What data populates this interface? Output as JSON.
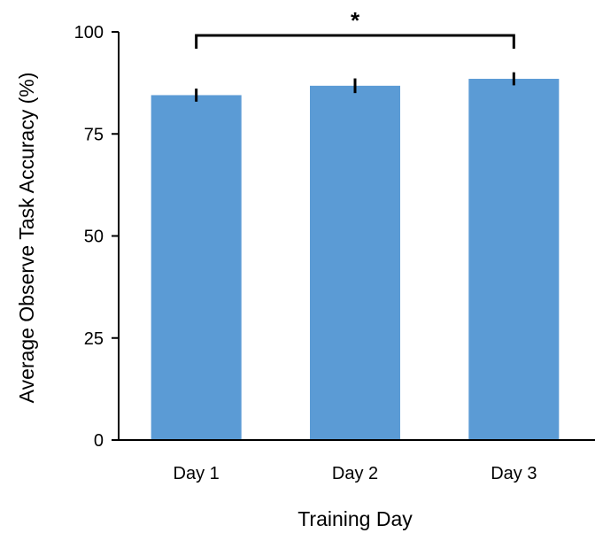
{
  "chart_data": {
    "type": "bar",
    "categories": [
      "Day 1",
      "Day 2",
      "Day 3"
    ],
    "values": [
      84.5,
      86.8,
      88.5
    ],
    "errors": [
      1.6,
      1.8,
      1.6
    ],
    "xlabel": "Training Day",
    "ylabel": "Average Observe Task Accuracy (%)",
    "ylim": [
      0,
      100
    ],
    "yticks": [
      "0",
      "25",
      "50",
      "75",
      "100"
    ],
    "grid": false,
    "bar_color": "#5b9bd5",
    "significance": {
      "from": "Day 1",
      "to": "Day 3",
      "label": "*"
    }
  }
}
